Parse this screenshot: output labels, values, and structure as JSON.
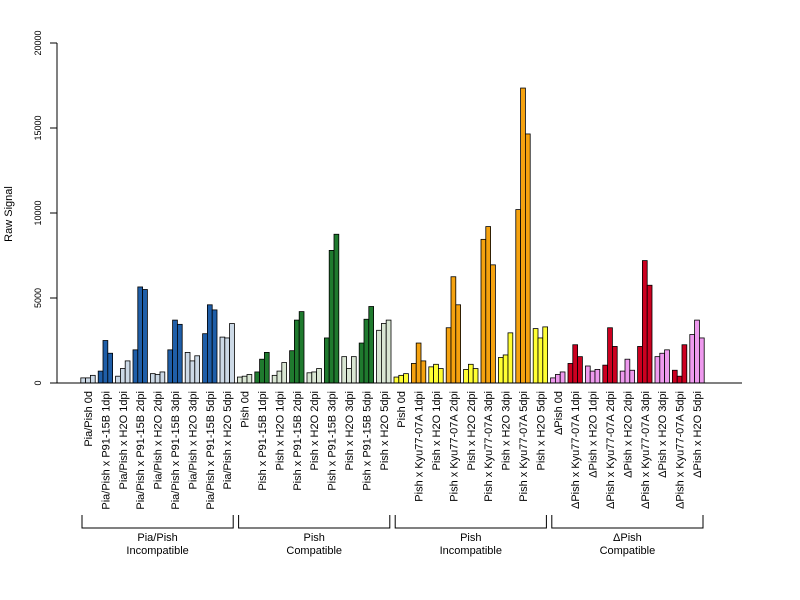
{
  "chart_data": {
    "type": "bar",
    "ylabel": "Raw Signal",
    "xlabel": "",
    "ylim": [
      0,
      20000
    ],
    "yticks": [
      0,
      5000,
      10000,
      15000,
      20000
    ],
    "grid": false,
    "categories": [
      "Pia/Pish 0d",
      "Pia/Pish x P91-15B 1dpi",
      "Pia/Pish x H2O 1dpi",
      "Pia/Pish x P91-15B 2dpi",
      "Pia/Pish x H2O 2dpi",
      "Pia/Pish x P91-15B 3dpi",
      "Pia/Pish x H2O 3dpi",
      "Pia/Pish x P91-15B 5dpi",
      "Pia/Pish x H2O 5dpi",
      "Pish 0d",
      "Pish x P91-15B 1dpi",
      "Pish x H2O 1dpi",
      "Pish x P91-15B 2dpi",
      "Pish x H2O 2dpi",
      "Pish x P91-15B 3dpi",
      "Pish x H2O 3dpi",
      "Pish x P91-15B 5dpi",
      "Pish x H2O 5dpi",
      "Pish 0d",
      "Pish x Kyu77-07A 1dpi",
      "Pish x H2O 1dpi",
      "Pish x Kyu77-07A 2dpi",
      "Pish x H2O 2dpi",
      "Pish x Kyu77-07A 3dpi",
      "Pish x H2O 3dpi",
      "Pish x Kyu77-07A 5dpi",
      "Pish x H2O 5dpi",
      "ΔPish 0d",
      "ΔPish x Kyu77-07A 1dpi",
      "ΔPish x H2O 1dpi",
      "ΔPish x Kyu77-07A 2dpi",
      "ΔPish x H2O 2dpi",
      "ΔPish x Kyu77-07A 3dpi",
      "ΔPish x H2O 3dpi",
      "ΔPish x Kyu77-07A 5dpi",
      "ΔPish x H2O 5dpi"
    ],
    "replicate_values": [
      [
        300,
        300,
        450
      ],
      [
        700,
        2500,
        1750
      ],
      [
        400,
        850,
        1300
      ],
      [
        1950,
        5650,
        5500
      ],
      [
        550,
        500,
        650
      ],
      [
        1950,
        3700,
        3450
      ],
      [
        1800,
        1300,
        1600
      ],
      [
        2900,
        4600,
        4300
      ],
      [
        2700,
        2650,
        3500
      ],
      [
        350,
        400,
        500
      ],
      [
        650,
        1400,
        1800
      ],
      [
        450,
        700,
        1200
      ],
      [
        1900,
        3700,
        4200
      ],
      [
        600,
        650,
        850
      ],
      [
        2650,
        7800,
        8750
      ],
      [
        1550,
        850,
        1550
      ],
      [
        2350,
        3750,
        4500
      ],
      [
        3100,
        3500,
        3700
      ],
      [
        350,
        450,
        550
      ],
      [
        1150,
        2350,
        1300
      ],
      [
        950,
        1100,
        850
      ],
      [
        3250,
        6250,
        4600
      ],
      [
        800,
        1100,
        850
      ],
      [
        8450,
        9200,
        6950
      ],
      [
        1500,
        1650,
        2950
      ],
      [
        10200,
        17350,
        14650
      ],
      [
        3200,
        2650,
        3300
      ],
      [
        300,
        500,
        650
      ],
      [
        1150,
        2250,
        1550
      ],
      [
        1000,
        700,
        800
      ],
      [
        1050,
        3250,
        2150
      ],
      [
        700,
        1400,
        750
      ],
      [
        2150,
        7200,
        5750
      ],
      [
        1550,
        1750,
        1950
      ],
      [
        750,
        400,
        2250
      ],
      [
        2850,
        3700,
        2650
      ]
    ],
    "colors": [
      "#ccd9e6",
      "#1f5ea8",
      "#ccd9e6",
      "#1f5ea8",
      "#ccd9e6",
      "#1f5ea8",
      "#ccd9e6",
      "#1f5ea8",
      "#ccd9e6",
      "#d9e6d3",
      "#1f7a2e",
      "#d9e6d3",
      "#1f7a2e",
      "#d9e6d3",
      "#1f7a2e",
      "#d9e6d3",
      "#1f7a2e",
      "#d9e6d3",
      "#ffff33",
      "#f5a20f",
      "#ffff33",
      "#f5a20f",
      "#ffff33",
      "#f5a20f",
      "#ffff33",
      "#f5a20f",
      "#ffff33",
      "#ee99ee",
      "#cc0020",
      "#ee99ee",
      "#cc0020",
      "#ee99ee",
      "#cc0020",
      "#ee99ee",
      "#cc0020",
      "#ee99ee"
    ],
    "groups": [
      {
        "line1": "Pia/Pish",
        "line2": "Incompatible",
        "start": 0,
        "end": 8
      },
      {
        "line1": "Pish",
        "line2": "Compatible",
        "start": 9,
        "end": 17
      },
      {
        "line1": "Pish",
        "line2": "Incompatible",
        "start": 18,
        "end": 26
      },
      {
        "line1": "ΔPish",
        "line2": "Compatible",
        "start": 27,
        "end": 35
      }
    ]
  }
}
